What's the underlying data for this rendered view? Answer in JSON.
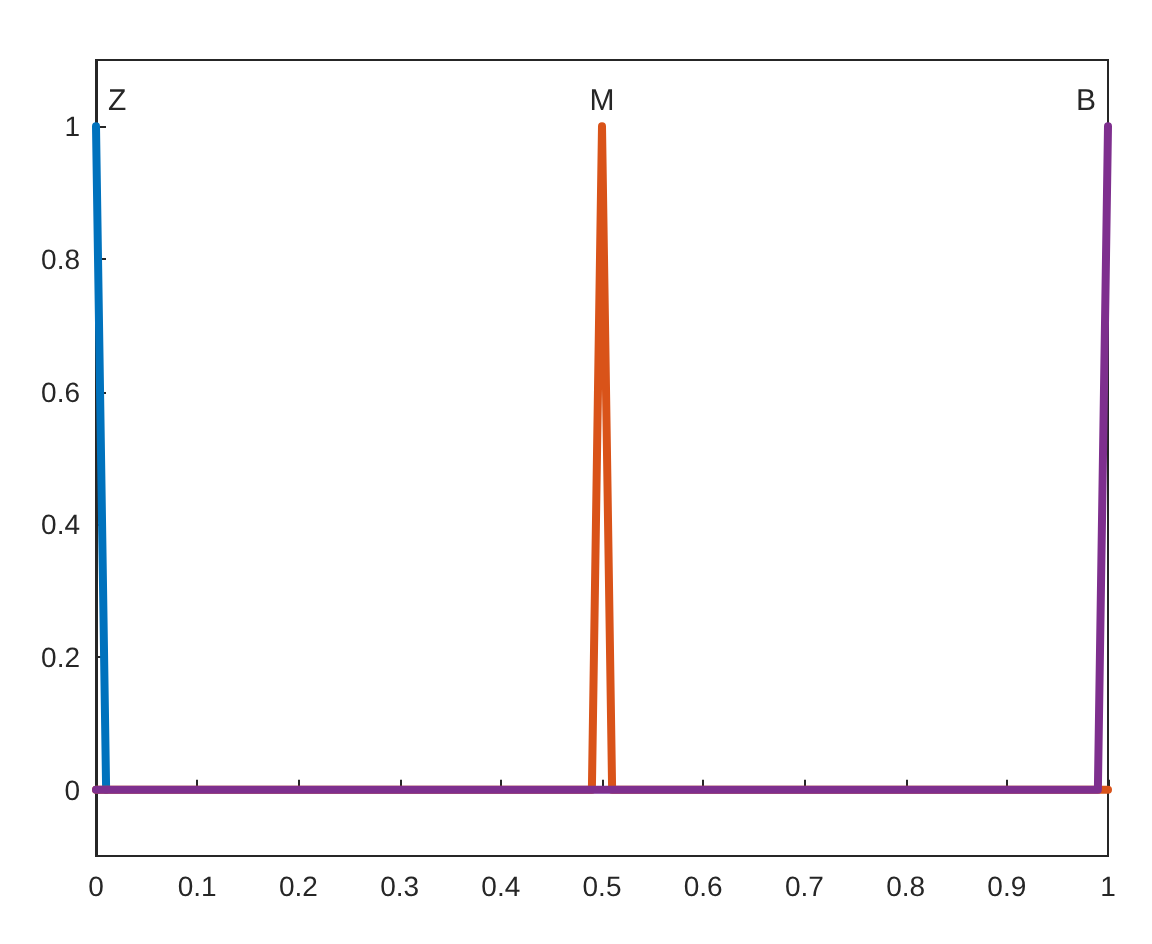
{
  "chart_data": {
    "type": "line",
    "xlim": [
      0,
      1
    ],
    "xticks": [
      0,
      0.1,
      0.2,
      0.3,
      0.4,
      0.5,
      0.6,
      0.7,
      0.8,
      0.9,
      1
    ],
    "ylim": [
      -0.1,
      1.1
    ],
    "yticks": [
      0,
      0.2,
      0.4,
      0.6,
      0.8,
      1
    ],
    "grid": false,
    "legend": false,
    "marker": "none",
    "line_style": "solid",
    "series": [
      {
        "name": "Z",
        "color": "#0072bd",
        "x": [
          0,
          0.01
        ],
        "values": [
          1,
          0
        ]
      },
      {
        "name": "M",
        "color": "#d95319",
        "x": [
          0,
          0.49,
          0.5,
          0.51,
          1
        ],
        "values": [
          0,
          0,
          1,
          0,
          0
        ]
      },
      {
        "name": "B",
        "color": "#7e2f8e",
        "x": [
          0,
          0.99,
          1
        ],
        "values": [
          0,
          0,
          1
        ]
      }
    ]
  }
}
